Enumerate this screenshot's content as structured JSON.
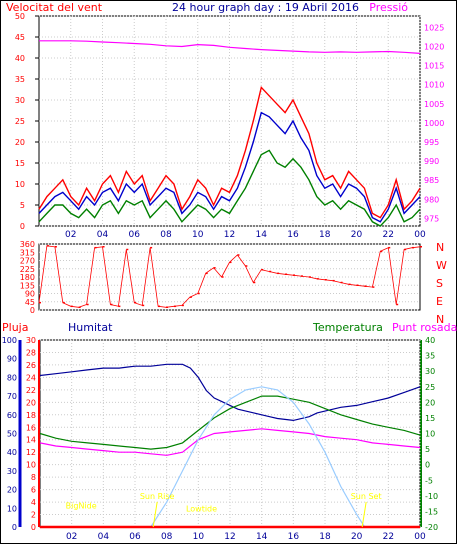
{
  "chart_data": [
    {
      "type": "line",
      "panel": "wind-pressure",
      "title": "24 hour graph day : 19 Abril 2016",
      "left_label": "Velocitat del vent",
      "right_label": "Pressió",
      "x_ticks": [
        "02",
        "04",
        "06",
        "08",
        "10",
        "12",
        "14",
        "16",
        "18",
        "20",
        "22",
        "00"
      ],
      "y_left_ticks": [
        0,
        5,
        10,
        15,
        20,
        25,
        30,
        35,
        40,
        45,
        50
      ],
      "y_right_ticks": [
        975,
        980,
        985,
        990,
        995,
        1000,
        1005,
        1010,
        1015,
        1020,
        1025
      ],
      "ylim_left": [
        0,
        50
      ],
      "ylim_right": [
        973,
        1028
      ],
      "colors": {
        "gust": "#ff0000",
        "average": "#0000cc",
        "direction_speed": "#008000",
        "pressure": "#ff00ff"
      },
      "series": [
        {
          "key": "gust",
          "x": [
            0,
            0.5,
            1,
            1.5,
            2,
            2.5,
            3,
            3.5,
            4,
            4.5,
            5,
            5.5,
            6,
            6.5,
            7,
            7.5,
            8,
            8.5,
            9,
            9.5,
            10,
            10.5,
            11,
            11.5,
            12,
            12.5,
            13,
            13.5,
            14,
            14.5,
            15,
            15.5,
            16,
            16.5,
            17,
            17.5,
            18,
            18.5,
            19,
            19.5,
            20,
            20.5,
            21,
            21.5,
            22,
            22.5,
            23,
            23.5,
            24
          ],
          "values": [
            4,
            7,
            9,
            11,
            7,
            5,
            9,
            6,
            10,
            12,
            8,
            13,
            10,
            12,
            6,
            9,
            12,
            10,
            4,
            7,
            11,
            9,
            5,
            9,
            8,
            12,
            18,
            25,
            33,
            31,
            29,
            27,
            30,
            26,
            22,
            15,
            11,
            12,
            9,
            13,
            11,
            9,
            3,
            2,
            5,
            11,
            4,
            6,
            9
          ]
        },
        {
          "key": "average",
          "x": [
            0,
            0.5,
            1,
            1.5,
            2,
            2.5,
            3,
            3.5,
            4,
            4.5,
            5,
            5.5,
            6,
            6.5,
            7,
            7.5,
            8,
            8.5,
            9,
            9.5,
            10,
            10.5,
            11,
            11.5,
            12,
            12.5,
            13,
            13.5,
            14,
            14.5,
            15,
            15.5,
            16,
            16.5,
            17,
            17.5,
            18,
            18.5,
            19,
            19.5,
            20,
            20.5,
            21,
            21.5,
            22,
            22.5,
            23,
            23.5,
            24
          ],
          "values": [
            3,
            5,
            7,
            8,
            6,
            4,
            7,
            5,
            8,
            9,
            6,
            10,
            8,
            10,
            5,
            7,
            9,
            8,
            3,
            5,
            8,
            7,
            4,
            7,
            6,
            9,
            14,
            20,
            27,
            26,
            24,
            22,
            25,
            21,
            18,
            12,
            9,
            10,
            7,
            10,
            9,
            7,
            2,
            1,
            4,
            9,
            3,
            5,
            7
          ]
        },
        {
          "key": "direction_speed",
          "x": [
            0,
            0.5,
            1,
            1.5,
            2,
            2.5,
            3,
            3.5,
            4,
            4.5,
            5,
            5.5,
            6,
            6.5,
            7,
            7.5,
            8,
            8.5,
            9,
            9.5,
            10,
            10.5,
            11,
            11.5,
            12,
            12.5,
            13,
            13.5,
            14,
            14.5,
            15,
            15.5,
            16,
            16.5,
            17,
            17.5,
            18,
            18.5,
            19,
            19.5,
            20,
            20.5,
            21,
            21.5,
            22,
            22.5,
            23,
            23.5,
            24
          ],
          "values": [
            1,
            3,
            5,
            5,
            3,
            2,
            4,
            2,
            5,
            6,
            3,
            6,
            5,
            6,
            2,
            4,
            6,
            4,
            1,
            3,
            5,
            4,
            2,
            4,
            3,
            6,
            9,
            13,
            17,
            18,
            15,
            14,
            16,
            14,
            11,
            7,
            5,
            6,
            4,
            6,
            5,
            4,
            1,
            0,
            2,
            5,
            1,
            2,
            4
          ]
        },
        {
          "key": "pressure",
          "axis": "right",
          "x": [
            0,
            1,
            2,
            3,
            4,
            5,
            6,
            7,
            8,
            9,
            10,
            11,
            12,
            13,
            14,
            15,
            16,
            17,
            18,
            19,
            20,
            21,
            22,
            23,
            24
          ],
          "values": [
            1021.5,
            1021.5,
            1021.5,
            1021.4,
            1021.2,
            1021,
            1020.8,
            1020.6,
            1020.2,
            1020,
            1020.5,
            1020.3,
            1019.8,
            1019.5,
            1019.2,
            1019,
            1018.8,
            1018.6,
            1018.5,
            1018.6,
            1018.5,
            1018.6,
            1018.7,
            1018.5,
            1018.2
          ]
        }
      ]
    },
    {
      "type": "scatter",
      "panel": "wind-direction",
      "y_ticks": [
        0,
        45,
        90,
        135,
        180,
        225,
        270,
        315,
        360
      ],
      "compass_labels": [
        "N",
        "W",
        "S",
        "E",
        "N"
      ],
      "ylim": [
        0,
        360
      ],
      "color": "#ff0000",
      "x": [
        0,
        0.5,
        1,
        1.5,
        2,
        2.5,
        3,
        3.5,
        4,
        4.5,
        5,
        5.5,
        6,
        6.5,
        7,
        7.5,
        8,
        8.5,
        9,
        9.5,
        10,
        10.5,
        11,
        11.5,
        12,
        12.5,
        13,
        13.5,
        14,
        14.5,
        15,
        15.5,
        16,
        16.5,
        17,
        17.5,
        18,
        18.5,
        19,
        19.5,
        20,
        20.5,
        21,
        21.5,
        22,
        22.5,
        23,
        23.5,
        24
      ],
      "values": [
        40,
        350,
        345,
        40,
        20,
        15,
        30,
        340,
        345,
        30,
        20,
        330,
        40,
        25,
        340,
        20,
        15,
        20,
        25,
        70,
        90,
        200,
        230,
        180,
        260,
        300,
        240,
        150,
        220,
        210,
        200,
        195,
        190,
        185,
        180,
        170,
        165,
        160,
        150,
        140,
        135,
        130,
        125,
        320,
        340,
        30,
        330,
        340,
        345
      ]
    },
    {
      "type": "line",
      "panel": "rain-humidity-temperature",
      "left_labels": [
        "Pluja",
        "Humitat"
      ],
      "right_labels": [
        "Temperatura",
        "Punt rosada"
      ],
      "y_humidity_ticks": [
        0,
        10,
        20,
        30,
        40,
        50,
        60,
        70,
        80,
        90,
        100
      ],
      "y_rain_ticks": [
        0,
        2,
        4,
        6,
        8,
        10,
        12,
        14,
        16,
        18,
        20,
        22,
        24,
        26,
        28,
        30
      ],
      "y_temp_ticks": [
        -20,
        -15,
        -10,
        -5,
        0,
        5,
        10,
        15,
        20,
        25,
        30,
        35,
        40
      ],
      "ylim_temp": [
        -20,
        40
      ],
      "x_ticks": [
        "02",
        "04",
        "06",
        "08",
        "10",
        "12",
        "14",
        "16",
        "18",
        "20",
        "22",
        "00"
      ],
      "annotations": [
        {
          "text": "BigNide",
          "x": 2.6,
          "y_temp": -14
        },
        {
          "text": "Sun Rise",
          "x": 7.4,
          "y_temp": -11
        },
        {
          "text": "Lowtide",
          "x": 10.2,
          "y_temp": -15
        },
        {
          "text": "Sun Set",
          "x": 20.6,
          "y_temp": -11
        }
      ],
      "colors": {
        "humidity": "#000099",
        "temperature": "#008000",
        "dewpoint": "#ff00ff",
        "rain": "#ff0000",
        "solar": "#99ccff",
        "annotation": "#ffff00"
      },
      "series": [
        {
          "key": "humidity",
          "axis": "humidity",
          "x": [
            0,
            1,
            2,
            3,
            4,
            5,
            6,
            7,
            8,
            9,
            9.5,
            10,
            10.5,
            11,
            11.5,
            12,
            12.5,
            13,
            13.5,
            14,
            14.5,
            15,
            16,
            17,
            17.5,
            18,
            19,
            20,
            21,
            22,
            23,
            24
          ],
          "values": [
            81,
            82,
            83,
            84,
            85,
            85,
            86,
            86,
            87,
            87,
            85,
            80,
            73,
            69,
            67,
            65,
            63,
            62,
            61,
            60,
            59,
            58,
            57,
            59,
            61,
            62,
            64,
            65,
            67,
            69,
            72,
            75
          ]
        },
        {
          "key": "temperature",
          "axis": "temp",
          "x": [
            0,
            1,
            2,
            3,
            4,
            5,
            6,
            7,
            8,
            9,
            10,
            11,
            12,
            13,
            14,
            15,
            16,
            17,
            18,
            19,
            20,
            21,
            22,
            23,
            24
          ],
          "values": [
            10,
            8.5,
            7.5,
            7,
            6.5,
            6,
            5.5,
            5,
            5.5,
            7,
            11,
            15,
            18,
            20,
            22,
            22,
            21,
            20,
            18,
            16,
            14.5,
            13,
            12,
            11,
            9.5
          ]
        },
        {
          "key": "dewpoint",
          "axis": "temp",
          "x": [
            0,
            1,
            2,
            3,
            4,
            5,
            6,
            7,
            8,
            9,
            10,
            11,
            12,
            13,
            14,
            15,
            16,
            17,
            18,
            19,
            20,
            21,
            22,
            23,
            24
          ],
          "values": [
            7,
            6,
            5.5,
            5,
            4.5,
            4,
            4,
            3.5,
            3,
            4,
            8,
            10,
            10.5,
            11,
            11.5,
            11,
            10.5,
            10,
            9,
            8.5,
            8,
            7,
            6.5,
            6,
            5.5
          ]
        },
        {
          "key": "solar",
          "axis": "temp",
          "x": [
            7,
            8,
            9,
            10,
            11,
            12,
            13,
            14,
            15,
            16,
            17,
            18,
            19,
            20,
            20.5
          ],
          "values": [
            -20,
            -12,
            -2,
            8,
            16,
            21,
            24,
            25,
            24,
            20,
            13,
            4,
            -7,
            -16,
            -20
          ]
        },
        {
          "key": "rain",
          "axis": "rain",
          "x": [
            0,
            24
          ],
          "values": [
            0,
            0
          ]
        }
      ]
    }
  ]
}
